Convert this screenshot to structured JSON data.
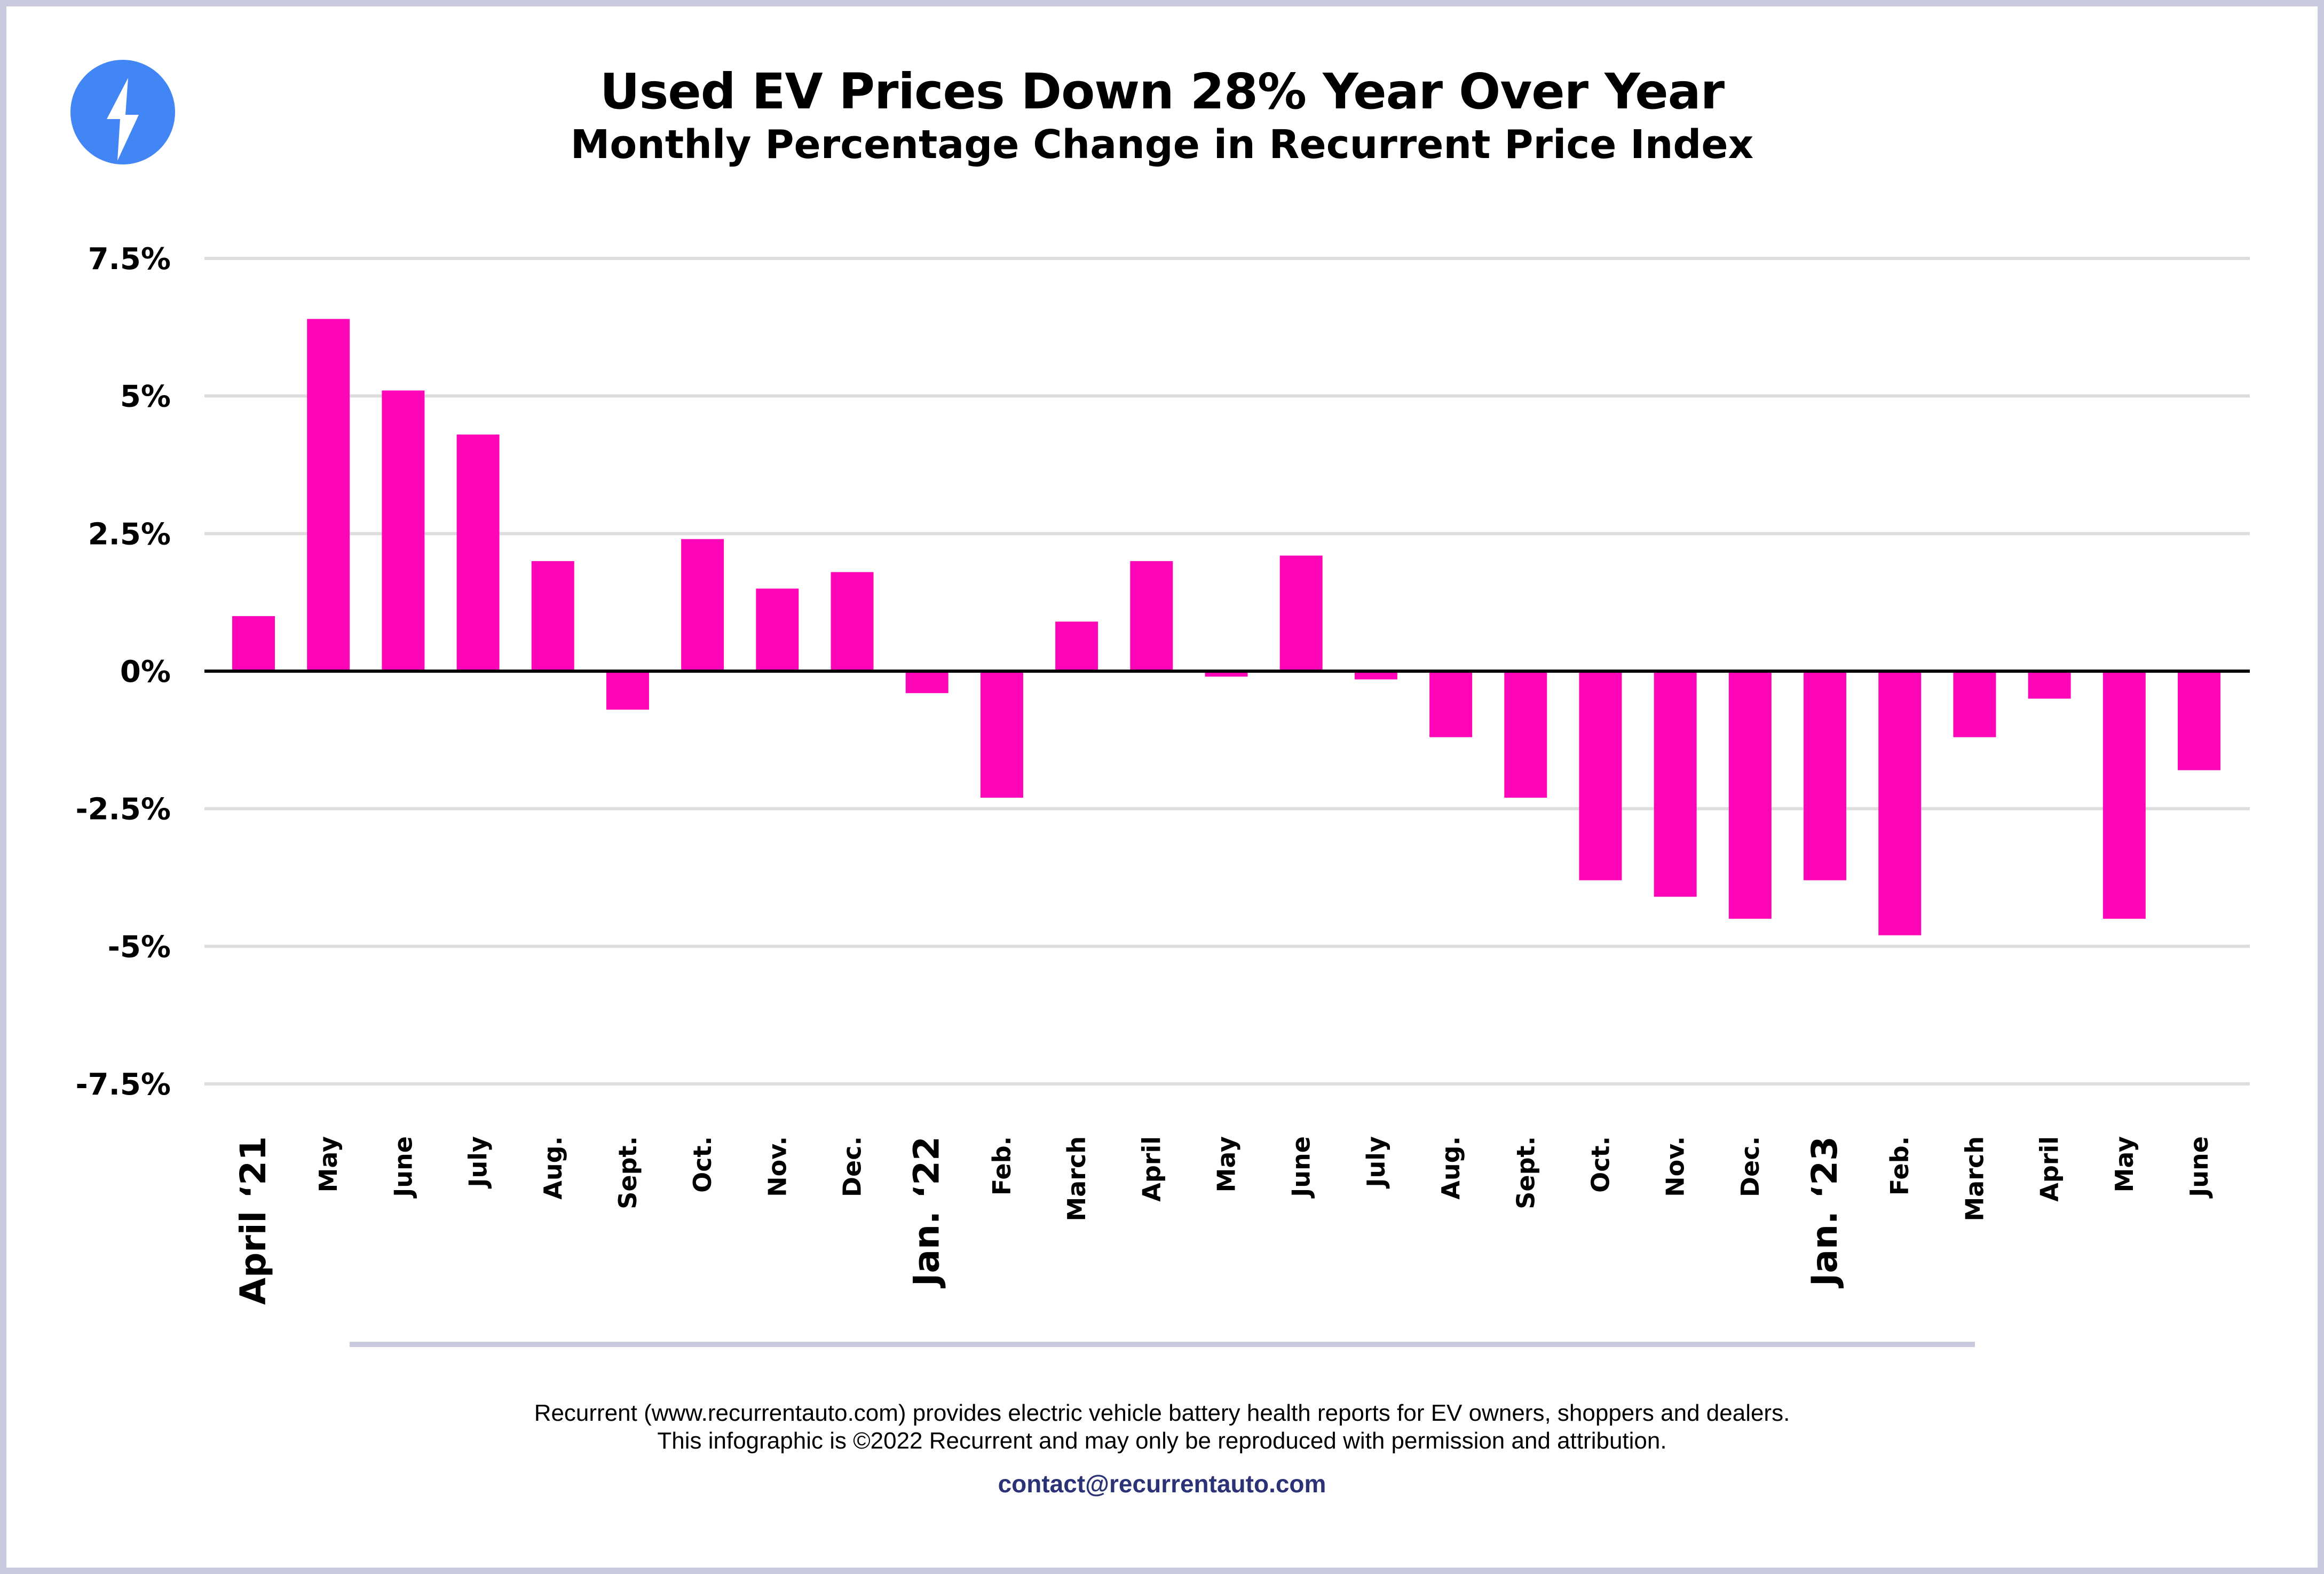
{
  "header": {
    "logo_icon": "lightning-bolt-icon",
    "title": "Used EV Prices Down 28% Year Over Year",
    "subtitle": "Monthly Percentage Change in Recurrent Price Index"
  },
  "colors": {
    "bar": "#FF05B8",
    "logo": "#4285F4",
    "border": "#C9CADD",
    "gridline": "#DDDDDD",
    "zero_line": "#000000",
    "contact": "#2B3275"
  },
  "chart_data": {
    "type": "bar",
    "title": "Used EV Prices Down 28% Year Over Year",
    "subtitle": "Monthly Percentage Change in Recurrent Price Index",
    "xlabel": "",
    "ylabel": "",
    "ylim": [
      -7.5,
      7.5
    ],
    "yticks": [
      7.5,
      5,
      2.5,
      0,
      -2.5,
      -5,
      -7.5
    ],
    "ytick_labels": [
      "7.5%",
      "5%",
      "2.5%",
      "0%",
      "-2.5%",
      "-5%",
      "-7.5%"
    ],
    "grid": true,
    "legend": "none",
    "categories": [
      "April '21",
      "May",
      "June",
      "July",
      "Aug.",
      "Sept.",
      "Oct.",
      "Nov.",
      "Dec.",
      "Jan. '22",
      "Feb.",
      "March",
      "April",
      "May",
      "June",
      "July",
      "Aug.",
      "Sept.",
      "Oct.",
      "Nov.",
      "Dec.",
      "Jan. '23",
      "Feb.",
      "March",
      "April",
      "May",
      "June"
    ],
    "category_labels_display": [
      "April ‘21",
      "May",
      "June",
      "July",
      "Aug.",
      "Sept.",
      "Oct.",
      "Nov.",
      "Dec.",
      "Jan. ‘22",
      "Feb.",
      "March",
      "April",
      "May",
      "June",
      "July",
      "Aug.",
      "Sept.",
      "Oct.",
      "Nov.",
      "Dec.",
      "Jan. ‘23",
      "Feb.",
      "March",
      "April",
      "May",
      "June"
    ],
    "major_categories": [
      0,
      9,
      21
    ],
    "series": [
      {
        "name": "Monthly % change",
        "values": [
          1.0,
          6.4,
          5.1,
          4.3,
          2.0,
          -0.7,
          2.4,
          1.5,
          1.8,
          -0.4,
          -2.3,
          0.9,
          2.0,
          -0.1,
          2.1,
          -0.15,
          -1.2,
          -2.3,
          -3.8,
          -4.1,
          -4.5,
          -3.8,
          -4.8,
          -1.2,
          -0.5,
          -4.5,
          -1.8
        ]
      }
    ]
  },
  "footer": {
    "line1": "Recurrent (www.recurrentauto.com) provides electric vehicle battery health reports for EV owners, shoppers and dealers.",
    "line2": "This infographic is ©2022 Recurrent and may only be reproduced with permission and attribution.",
    "contact": "contact@recurrentauto.com"
  }
}
